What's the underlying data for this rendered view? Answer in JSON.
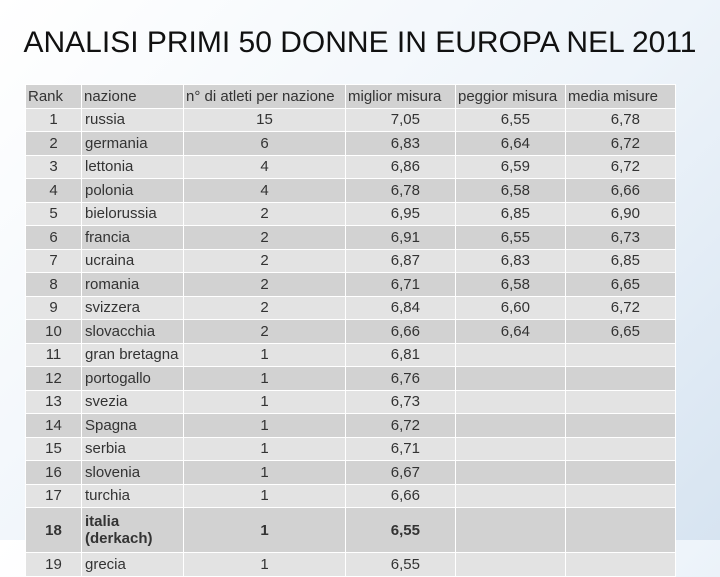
{
  "title": "ANALISI PRIMI 50 DONNE IN EUROPA NEL 2011",
  "table": {
    "header": [
      "Rank",
      "nazione",
      "n° di atleti per nazione",
      "miglior misura",
      "peggior misura",
      "media misure"
    ],
    "rows": [
      [
        "1",
        "russia",
        "15",
        "7,05",
        "6,55",
        "6,78"
      ],
      [
        "2",
        "germania",
        "6",
        "6,83",
        "6,64",
        "6,72"
      ],
      [
        "3",
        "lettonia",
        "4",
        "6,86",
        "6,59",
        "6,72"
      ],
      [
        "4",
        "polonia",
        "4",
        "6,78",
        "6,58",
        "6,66"
      ],
      [
        "5",
        "bielorussia",
        "2",
        "6,95",
        "6,85",
        "6,90"
      ],
      [
        "6",
        "francia",
        "2",
        "6,91",
        "6,55",
        "6,73"
      ],
      [
        "7",
        "ucraina",
        "2",
        "6,87",
        "6,83",
        "6,85"
      ],
      [
        "8",
        "romania",
        "2",
        "6,71",
        "6,58",
        "6,65"
      ],
      [
        "9",
        "svizzera",
        "2",
        "6,84",
        "6,60",
        "6,72"
      ],
      [
        "10",
        "slovacchia",
        "2",
        "6,66",
        "6,64",
        "6,65"
      ],
      [
        "11",
        "gran bretagna",
        "1",
        "6,81"
      ],
      [
        "12",
        "portogallo",
        "1",
        "6,76"
      ],
      [
        "13",
        "svezia",
        "1",
        "6,73"
      ],
      [
        "14",
        "Spagna",
        "1",
        "6,72"
      ],
      [
        "15",
        "serbia",
        "1",
        "6,71"
      ],
      [
        "16",
        "slovenia",
        "1",
        "6,67"
      ],
      [
        "17",
        "turchia",
        "1",
        "6,66"
      ],
      [
        "18",
        "italia (derkach)",
        "1",
        "6,55"
      ],
      [
        "19",
        "grecia",
        "1",
        "6,55"
      ]
    ],
    "bold_rows": [
      17
    ]
  }
}
